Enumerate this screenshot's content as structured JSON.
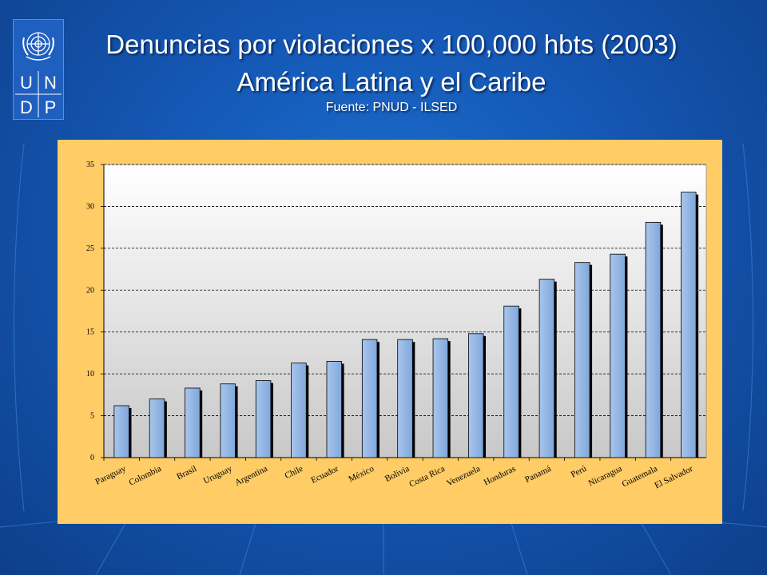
{
  "header": {
    "title_line1": "Denuncias por violaciones x 100,000 hbts (2003)",
    "title_line2": "América Latina y el Caribe",
    "source": "Fuente: PNUD - ILSED"
  },
  "logo": {
    "letters": [
      "U",
      "N",
      "D",
      "P"
    ],
    "icon": "un-emblem-icon"
  },
  "colors": {
    "background": "#1557b4",
    "panel": "#ffcc66",
    "bar": "#8eb4e3",
    "text": "#ffffff"
  },
  "chart_data": {
    "type": "bar",
    "title": "",
    "xlabel": "",
    "ylabel": "",
    "ylim": [
      0,
      35
    ],
    "yticks": [
      0,
      5,
      10,
      15,
      20,
      25,
      30,
      35
    ],
    "grid": true,
    "categories": [
      "Paraguay",
      "Colombia",
      "Brasil",
      "Uruguay",
      "Argentina",
      "Chile",
      "Ecuador",
      "México",
      "Bolivia",
      "Costa Rica",
      "Venezuela",
      "Honduras",
      "Panamá",
      "Perú",
      "Nicaragua",
      "Guatemala",
      "El Salvador"
    ],
    "values": [
      6.2,
      7.0,
      8.3,
      8.8,
      9.2,
      11.3,
      11.5,
      14.1,
      14.1,
      14.2,
      14.8,
      18.1,
      21.3,
      23.3,
      24.3,
      28.1,
      31.7
    ]
  }
}
